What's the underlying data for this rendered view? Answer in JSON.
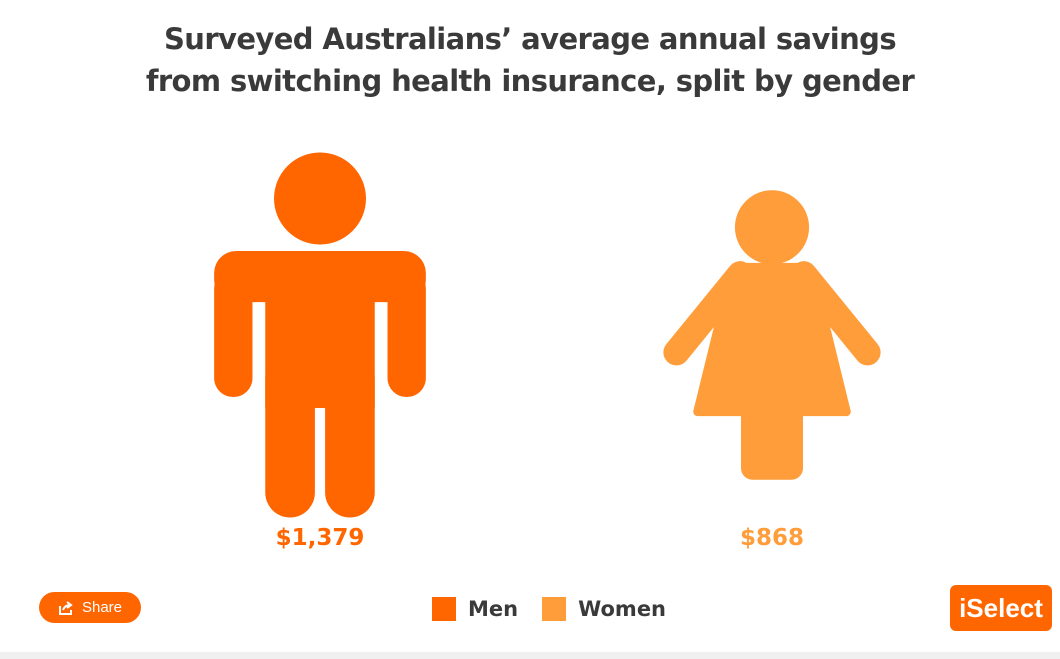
{
  "chart_data": {
    "type": "pictogram",
    "title": "Surveyed Australians’ average annual savings from switching health insurance, split by gender",
    "categories": [
      "Men",
      "Women"
    ],
    "values": [
      1379,
      868
    ],
    "value_labels": [
      "$1,379",
      "$868"
    ],
    "colors": [
      "#ff6600",
      "#ff9d3b"
    ]
  },
  "share_button": "Share",
  "logo": "iSelect"
}
